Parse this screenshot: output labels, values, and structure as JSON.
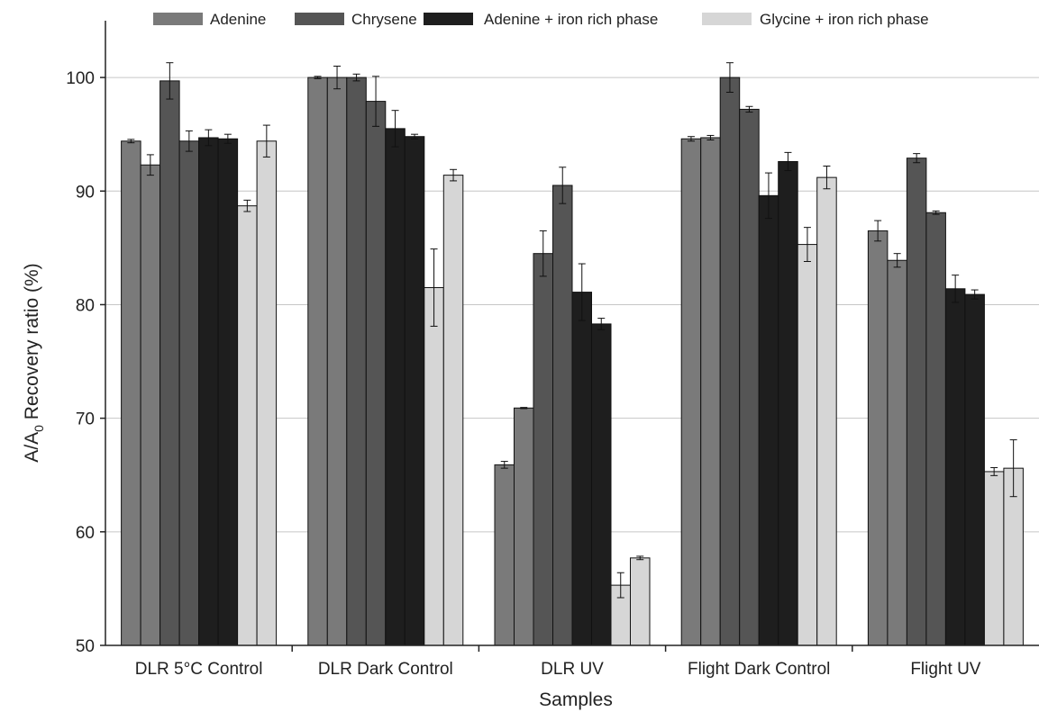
{
  "chart_data": {
    "type": "bar",
    "title": "",
    "xlabel": "Samples",
    "ylabel": "A/A0 Recovery ratio (%)",
    "ylabel_main": "A/A",
    "ylabel_sub": "0",
    "ylabel_rest": " Recovery ratio (%)",
    "ylim": [
      50,
      105
    ],
    "yticks": [
      50,
      60,
      70,
      80,
      90,
      100
    ],
    "grid": true,
    "legend_position": "top",
    "legend": [
      {
        "label": "Adenine",
        "color": "#7a7a7a"
      },
      {
        "label": "Chrysene",
        "color": "#555555"
      },
      {
        "label": "Adenine + iron rich phase",
        "color": "#1e1e1e"
      },
      {
        "label": "Glycine + iron rich phase",
        "color": "#d6d6d6"
      }
    ],
    "categories": [
      "DLR 5°C Control",
      "DLR Dark Control",
      "DLR UV",
      "Flight Dark Control",
      "Flight UV"
    ],
    "bar_colors": [
      "#7a7a7a",
      "#7a7a7a",
      "#555555",
      "#555555",
      "#1e1e1e",
      "#1e1e1e",
      "#d6d6d6",
      "#d6d6d6"
    ],
    "values": [
      [
        94.4,
        92.3,
        99.7,
        94.4,
        94.7,
        94.6,
        88.7,
        94.4
      ],
      [
        100.0,
        100.0,
        100.0,
        97.9,
        95.5,
        94.8,
        81.5,
        91.4
      ],
      [
        65.9,
        70.9,
        84.5,
        90.5,
        81.1,
        78.3,
        55.3,
        57.7
      ],
      [
        94.6,
        94.7,
        100.0,
        97.2,
        89.6,
        92.6,
        85.3,
        91.2
      ],
      [
        86.5,
        83.9,
        92.9,
        88.1,
        81.4,
        80.9,
        65.3,
        65.6
      ]
    ],
    "errors": [
      [
        0.15,
        0.9,
        1.6,
        0.9,
        0.7,
        0.4,
        0.5,
        1.4
      ],
      [
        0.1,
        1.0,
        0.3,
        2.2,
        1.6,
        0.2,
        3.4,
        0.5
      ],
      [
        0.3,
        0.05,
        2.0,
        1.6,
        2.5,
        0.5,
        1.1,
        0.15
      ],
      [
        0.2,
        0.2,
        1.3,
        0.25,
        2.0,
        0.8,
        1.5,
        1.0
      ],
      [
        0.9,
        0.6,
        0.4,
        0.15,
        1.2,
        0.4,
        0.35,
        2.5
      ]
    ]
  }
}
